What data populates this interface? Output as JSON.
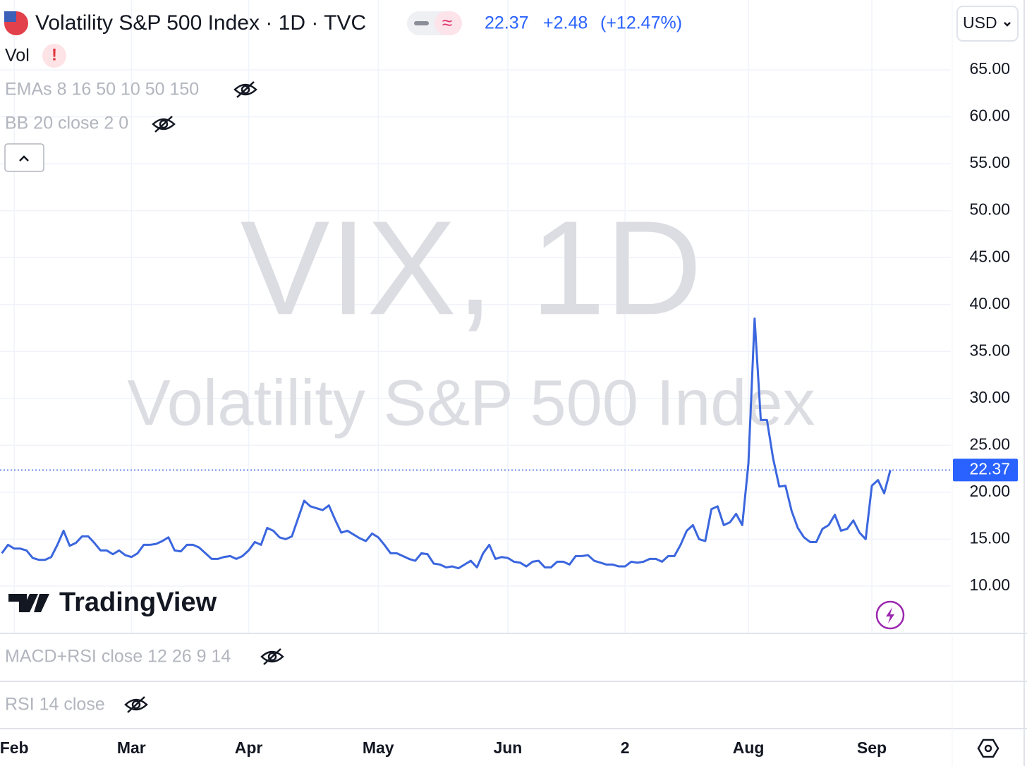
{
  "header": {
    "title": "Volatility S&P 500 Index · 1D · TVC",
    "change": "+2.48",
    "change_pct": "(+12.47%)",
    "currency": "USD"
  },
  "indicators": [
    "Vol",
    "EMAs 8 16 50 10 50 150",
    "BB 20 close 2 0"
  ],
  "watermark": [
    "VIX, 1D",
    "Volatility S&P 500 Index"
  ],
  "brand": "TradingView",
  "panes": [
    "MACD+RSI close 12 26 9 14",
    "RSI 14 close"
  ],
  "chart_data": {
    "type": "line",
    "series": [
      {
        "color": "#3b66de",
        "values": [
          13.5,
          14.4,
          14.0,
          14.0,
          13.8,
          13.0,
          12.8,
          12.8,
          13.1,
          14.4,
          15.9,
          14.3,
          14.6,
          15.3,
          15.3,
          14.6,
          13.8,
          13.8,
          13.4,
          13.8,
          13.3,
          13.1,
          13.5,
          14.4,
          14.4,
          14.5,
          14.8,
          15.2,
          13.8,
          13.7,
          14.4,
          14.4,
          14.1,
          13.5,
          12.9,
          12.9,
          13.1,
          13.2,
          12.9,
          13.2,
          13.8,
          14.7,
          14.4,
          16.2,
          15.9,
          15.2,
          15.0,
          15.3,
          17.2,
          19.1,
          18.5,
          18.3,
          18.1,
          18.6,
          17.1,
          15.7,
          15.9,
          15.5,
          15.1,
          14.8,
          15.6,
          15.2,
          14.4,
          13.5,
          13.5,
          13.2,
          12.9,
          12.7,
          13.5,
          13.4,
          12.4,
          12.3,
          12.0,
          12.1,
          11.9,
          12.3,
          12.7,
          12.0,
          13.5,
          14.4,
          12.9,
          13.1,
          13.0,
          12.6,
          12.5,
          12.1,
          12.6,
          12.7,
          12.0,
          12.0,
          12.6,
          12.6,
          12.3,
          13.2,
          13.2,
          13.3,
          12.7,
          12.5,
          12.3,
          12.3,
          12.1,
          12.1,
          12.6,
          12.5,
          12.6,
          12.9,
          12.9,
          12.6,
          13.2,
          13.2,
          14.4,
          15.9,
          16.5,
          15.0,
          14.8,
          18.2,
          18.5,
          16.5,
          16.8,
          17.7,
          16.5,
          23.1,
          38.5,
          27.7,
          27.7,
          23.6,
          20.6,
          20.7,
          18.0,
          16.2,
          15.2,
          14.7,
          14.7,
          16.1,
          16.5,
          17.6,
          15.9,
          16.1,
          17.0,
          15.7,
          15.0,
          20.7,
          21.3,
          19.89,
          22.37
        ]
      }
    ],
    "xlim": [
      -0.3,
      153.8
    ],
    "xticks": [
      {
        "value": 2,
        "label": "Feb"
      },
      {
        "value": 21,
        "label": "Mar"
      },
      {
        "value": 40,
        "label": "Apr"
      },
      {
        "value": 61,
        "label": "May"
      },
      {
        "value": 82,
        "label": "Jun"
      },
      {
        "value": 101,
        "label": "2"
      },
      {
        "value": 121,
        "label": "Aug"
      },
      {
        "value": 141,
        "label": "Sep"
      }
    ],
    "ylim": [
      5.04,
      72.44
    ],
    "yticks": [
      {
        "value": 10,
        "label": "10.00"
      },
      {
        "value": 15,
        "label": "15.00"
      },
      {
        "value": 20,
        "label": "20.00"
      },
      {
        "value": 25,
        "label": "25.00"
      },
      {
        "value": 30,
        "label": "30.00"
      },
      {
        "value": 35,
        "label": "35.00"
      },
      {
        "value": 40,
        "label": "40.00"
      },
      {
        "value": 45,
        "label": "45.00"
      },
      {
        "value": 50,
        "label": "50.00"
      },
      {
        "value": 55,
        "label": "55.00"
      },
      {
        "value": 60,
        "label": "60.00"
      },
      {
        "value": 65,
        "label": "65.00"
      }
    ],
    "grid": true
  }
}
